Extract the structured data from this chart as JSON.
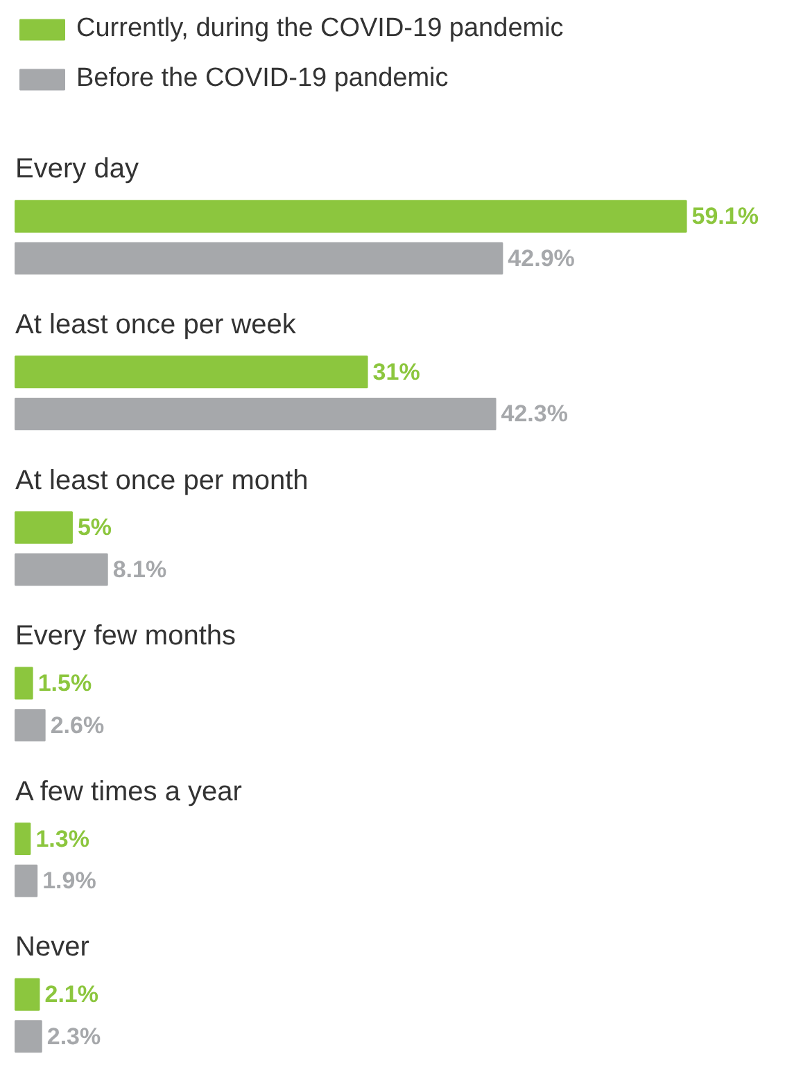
{
  "chart_data": {
    "type": "bar",
    "orientation": "horizontal",
    "categories": [
      "Every day",
      "At least once per week",
      "At least once per month",
      "Every few months",
      "A few times a year",
      "Never"
    ],
    "series": [
      {
        "name": "Currently, during the COVID-19 pandemic",
        "color": "#8cc63e",
        "values": [
          59.1,
          31,
          5,
          1.5,
          1.3,
          2.1
        ],
        "value_labels": [
          "59.1%",
          "31%",
          "5%",
          "1.5%",
          "1.3%",
          "2.1%"
        ]
      },
      {
        "name": "Before the COVID-19 pandemic",
        "color": "#a6a8ab",
        "values": [
          42.9,
          42.3,
          8.1,
          2.6,
          1.9,
          2.3
        ],
        "value_labels": [
          "42.9%",
          "42.3%",
          "8.1%",
          "2.6%",
          "1.9%",
          "2.3%"
        ]
      }
    ],
    "legend": "top left"
  }
}
